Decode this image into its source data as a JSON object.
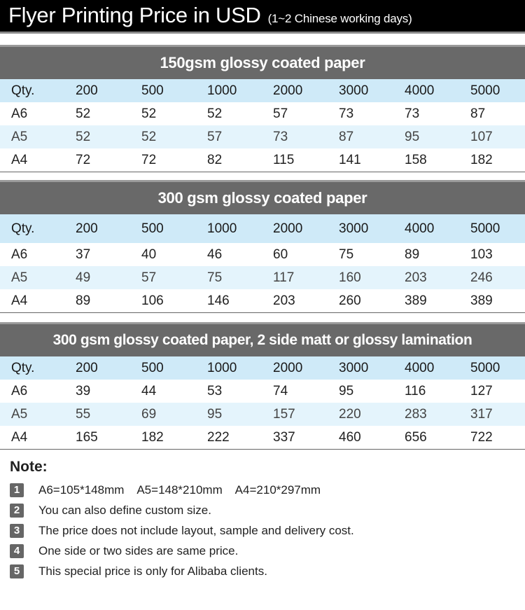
{
  "header": {
    "title": "Flyer Printing Price in USD",
    "subtitle": "(1~2 Chinese working days)"
  },
  "tables": [
    {
      "title": "150gsm glossy coated paper",
      "columns": [
        "Qty.",
        "200",
        "500",
        "1000",
        "2000",
        "3000",
        "4000",
        "5000"
      ],
      "rows": [
        [
          "A6",
          "52",
          "52",
          "52",
          "57",
          "73",
          "73",
          "87"
        ],
        [
          "A5",
          "52",
          "52",
          "57",
          "73",
          "87",
          "95",
          "107"
        ],
        [
          "A4",
          "72",
          "72",
          "82",
          "115",
          "141",
          "158",
          "182"
        ]
      ]
    },
    {
      "title": "300 gsm glossy coated paper",
      "columns": [
        "Qty.",
        "200",
        "500",
        "1000",
        "2000",
        "3000",
        "4000",
        "5000"
      ],
      "rows": [
        [
          "A6",
          "37",
          "40",
          "46",
          "60",
          "75",
          "89",
          "103"
        ],
        [
          "A5",
          "49",
          "57",
          "75",
          "117",
          "160",
          "203",
          "246"
        ],
        [
          "A4",
          "89",
          "106",
          "146",
          "203",
          "260",
          "389",
          "389"
        ]
      ]
    },
    {
      "title": "300 gsm glossy coated paper, 2 side matt or glossy lamination",
      "columns": [
        "Qty.",
        "200",
        "500",
        "1000",
        "2000",
        "3000",
        "4000",
        "5000"
      ],
      "rows": [
        [
          "A6",
          "39",
          "44",
          "53",
          "74",
          "95",
          "116",
          "127"
        ],
        [
          "A5",
          "55",
          "69",
          "95",
          "157",
          "220",
          "283",
          "317"
        ],
        [
          "A4",
          "165",
          "182",
          "222",
          "337",
          "460",
          "656",
          "722"
        ]
      ]
    }
  ],
  "note": {
    "title": "Note:",
    "items": [
      {
        "n": "1",
        "text": "A6=105*148mm    A5=148*210mm    A4=210*297mm"
      },
      {
        "n": "2",
        "text": "You can also define custom size."
      },
      {
        "n": "3",
        "text": "The price does not include layout, sample and delivery cost."
      },
      {
        "n": "4",
        "text": "One side or two sides are same price."
      },
      {
        "n": "5",
        "text": "This special price is only for Alibaba clients."
      }
    ]
  }
}
